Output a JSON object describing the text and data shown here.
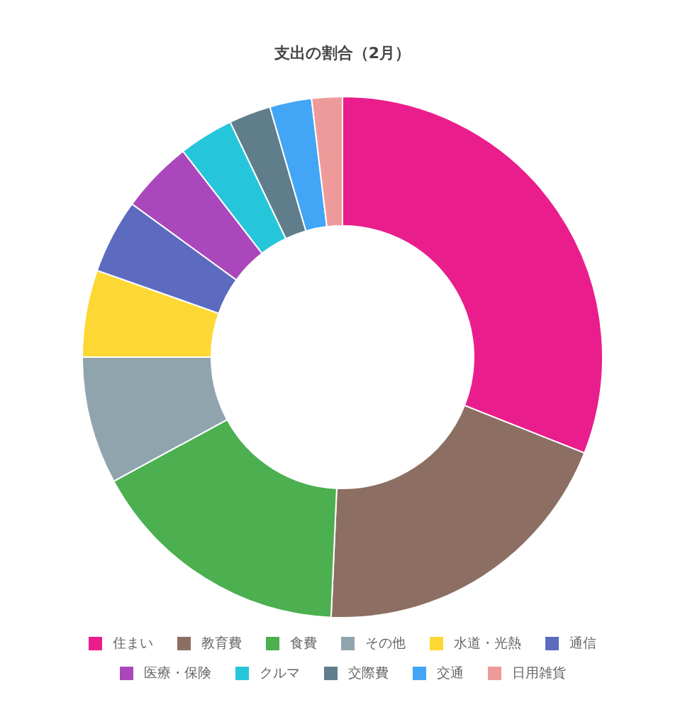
{
  "chart_data": {
    "type": "donut",
    "title": "支出の割合（2月）",
    "categories": [
      "住まい",
      "教育費",
      "食費",
      "その他",
      "水道・光熱",
      "通信",
      "医療・保険",
      "クルマ",
      "交際費",
      "交通",
      "日用雑貨"
    ],
    "values": [
      31.0,
      19.7,
      16.4,
      7.9,
      5.4,
      4.6,
      4.5,
      3.4,
      2.6,
      2.6,
      1.9
    ],
    "colors": [
      "#e91e8c",
      "#8d6e63",
      "#4caf50",
      "#90a4ae",
      "#fdd835",
      "#5c6bc0",
      "#ab47bc",
      "#26c6da",
      "#607d8b",
      "#42a5f5",
      "#ef9a9a"
    ],
    "legend": "bottom"
  }
}
